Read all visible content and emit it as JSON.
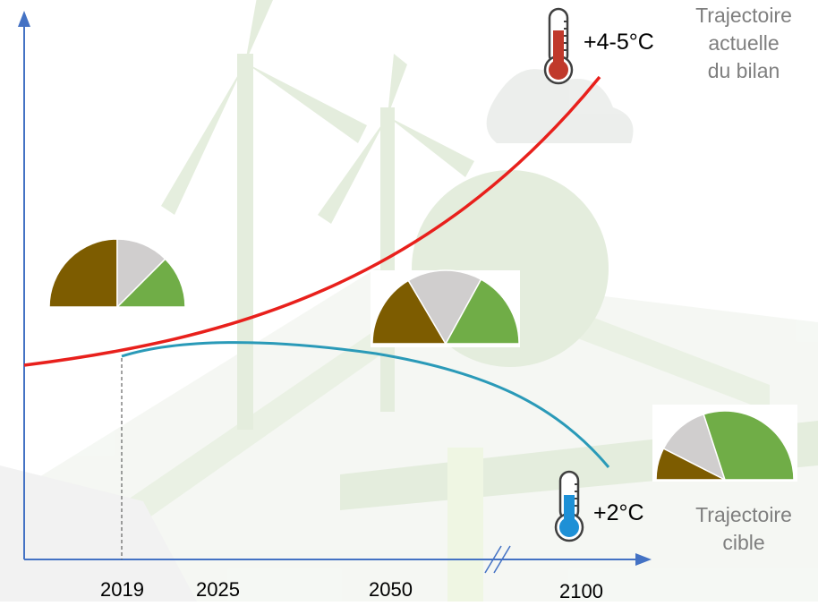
{
  "x_axis": {
    "ticks": [
      "2019",
      "2025",
      "2050",
      "2100"
    ]
  },
  "current_trajectory": {
    "temperature": "+4-5°C",
    "label_lines": [
      "Trajectoire",
      "actuelle",
      "du bilan"
    ],
    "color": "#e8201c"
  },
  "target_trajectory": {
    "temperature": "+2°C",
    "label_lines": [
      "Trajectoire",
      "cible"
    ],
    "color": "#2a9ab8"
  },
  "gauge_colors": {
    "brown": "#7d5c00",
    "grey": "#d0cece",
    "green": "#70ad47"
  },
  "gauges": [
    {
      "name": "gauge-2019",
      "shares": {
        "brown": 0.5,
        "grey": 0.25,
        "green": 0.25
      }
    },
    {
      "name": "gauge-2050-current",
      "shares": {
        "brown": 0.33,
        "grey": 0.33,
        "green": 0.34
      }
    },
    {
      "name": "gauge-2100-target",
      "shares": {
        "brown": 0.15,
        "grey": 0.25,
        "green": 0.6
      }
    }
  ]
}
